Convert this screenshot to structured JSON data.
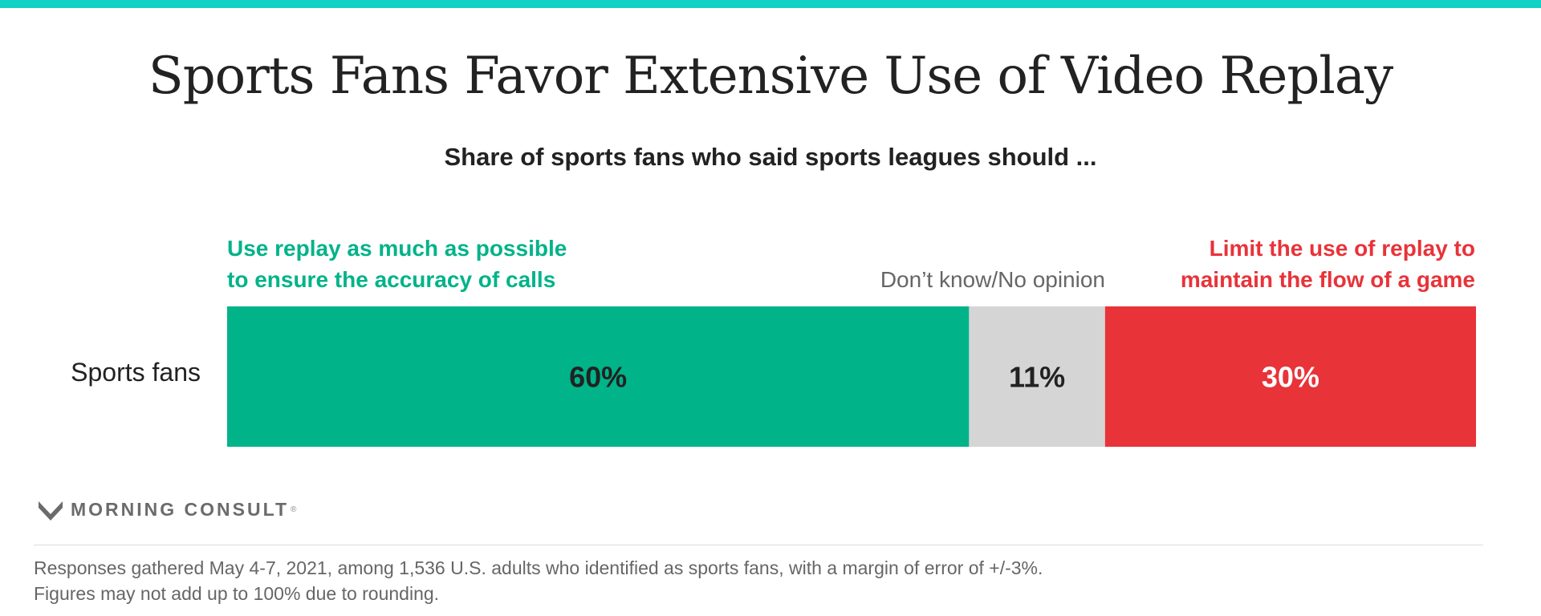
{
  "colors": {
    "accent_bar": "#10d1c3",
    "use_replay": "#00b389",
    "dont_know": "#d5d5d5",
    "limit_replay": "#e83339",
    "text_dark": "#222222",
    "text_gray": "#666666",
    "text_white": "#ffffff"
  },
  "header": {
    "title": "Sports Fans Favor Extensive Use of Video Replay",
    "subtitle": "Share of sports fans who said sports leagues should ..."
  },
  "chart_data": {
    "type": "bar",
    "orientation": "horizontal-stacked",
    "categories": [
      "Sports fans"
    ],
    "series": [
      {
        "name": "Use replay as much as possible to ensure the accuracy of calls",
        "name_lines": [
          "Use replay as much as possible",
          "to ensure the accuracy of calls"
        ],
        "values": [
          60
        ],
        "label": "60%"
      },
      {
        "name": "Don’t know/No opinion",
        "name_lines": [
          "Don’t know/No opinion"
        ],
        "values": [
          11
        ],
        "label": "11%"
      },
      {
        "name": "Limit the use of replay to maintain the flow of a game",
        "name_lines": [
          "Limit the use of replay to",
          "maintain the flow of a game"
        ],
        "values": [
          30
        ],
        "label": "30%"
      }
    ],
    "xlim": [
      0,
      101
    ],
    "grid": false,
    "legend": "top"
  },
  "logo": {
    "text": "MORNING CONSULT",
    "mark": "®"
  },
  "footnote": {
    "line1": "Responses gathered May 4-7, 2021, among 1,536 U.S. adults who identified as sports fans, with a margin of error of +/-3%.",
    "line2": "Figures may not add up to 100% due to rounding."
  }
}
